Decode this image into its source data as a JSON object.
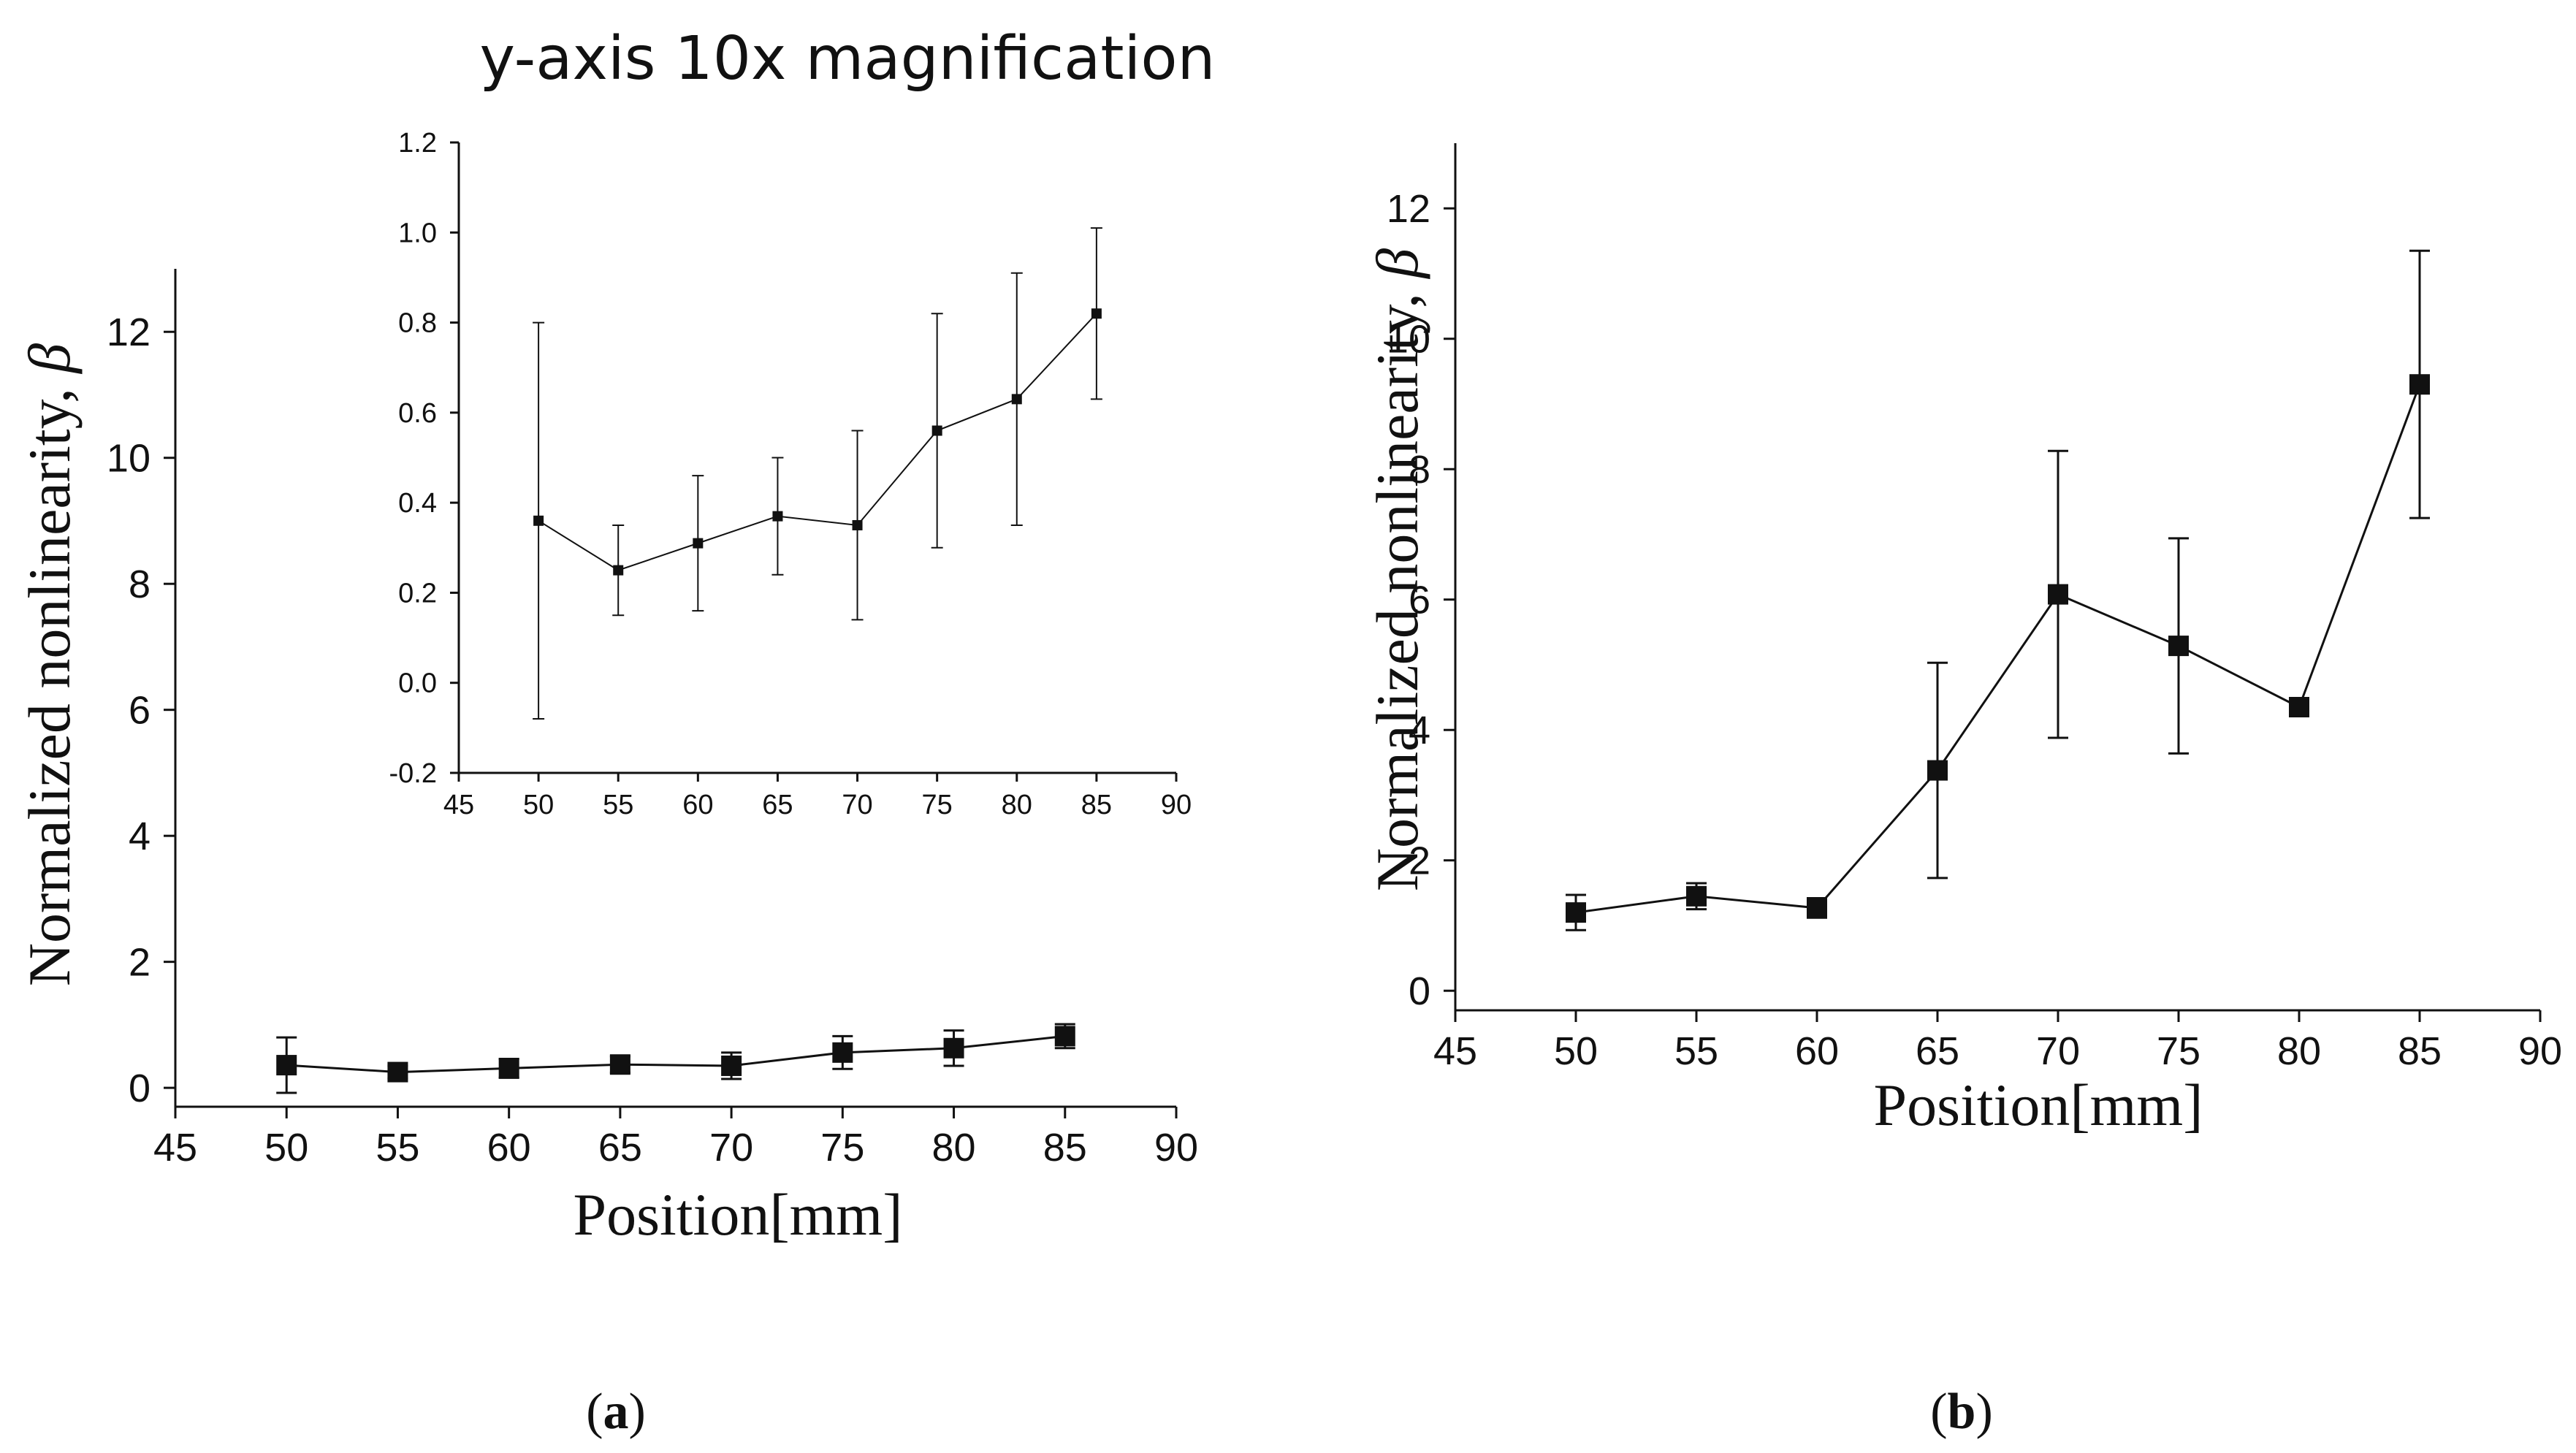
{
  "chart_data": [
    {
      "id": "a-main",
      "panel_label": "a",
      "type": "line",
      "title": "",
      "xlabel": "Position[mm]",
      "ylabel": "Normalized nonlinearity,",
      "ylabel_symbol": "β",
      "xlim": [
        45,
        90
      ],
      "ylim": [
        -0.3,
        13
      ],
      "xticks": [
        45,
        50,
        55,
        60,
        65,
        70,
        75,
        80,
        85,
        90
      ],
      "yticks": [
        0,
        2,
        4,
        6,
        8,
        10,
        12
      ],
      "x": [
        50,
        55,
        60,
        65,
        70,
        75,
        80,
        85
      ],
      "y": [
        0.36,
        0.25,
        0.31,
        0.37,
        0.35,
        0.56,
        0.63,
        0.82
      ],
      "error": [
        0.44,
        0.1,
        0.15,
        0.13,
        0.21,
        0.26,
        0.28,
        0.19
      ],
      "grid": false,
      "legend": "none"
    },
    {
      "id": "a-inset",
      "type": "line",
      "title": "y-axis 10x magnification",
      "xlim": [
        45,
        90
      ],
      "ylim": [
        -0.2,
        1.2
      ],
      "xticks": [
        45,
        50,
        55,
        60,
        65,
        70,
        75,
        80,
        85,
        90
      ],
      "yticks": [
        -0.2,
        0.0,
        0.2,
        0.4,
        0.6,
        0.8,
        1.0,
        1.2
      ],
      "x": [
        50,
        55,
        60,
        65,
        70,
        75,
        80,
        85
      ],
      "y": [
        0.36,
        0.25,
        0.31,
        0.37,
        0.35,
        0.56,
        0.63,
        0.82
      ],
      "error": [
        0.44,
        0.1,
        0.15,
        0.13,
        0.21,
        0.26,
        0.28,
        0.19
      ],
      "grid": false,
      "legend": "none"
    },
    {
      "id": "b",
      "panel_label": "b",
      "type": "line",
      "title": "",
      "xlabel": "Position[mm]",
      "ylabel": "Normalized nonlinearity,",
      "ylabel_symbol": "β",
      "xlim": [
        45,
        90
      ],
      "ylim": [
        -0.3,
        13
      ],
      "xticks": [
        45,
        50,
        55,
        60,
        65,
        70,
        75,
        80,
        85,
        90
      ],
      "yticks": [
        0,
        2,
        4,
        6,
        8,
        10,
        12
      ],
      "x": [
        50,
        55,
        60,
        65,
        70,
        75,
        80,
        85
      ],
      "y": [
        1.2,
        1.45,
        1.27,
        3.38,
        6.08,
        5.29,
        4.35,
        9.3
      ],
      "error": [
        0.27,
        0.2,
        0.15,
        1.65,
        2.2,
        1.65,
        0.1,
        2.05
      ],
      "grid": false,
      "legend": "none"
    }
  ]
}
